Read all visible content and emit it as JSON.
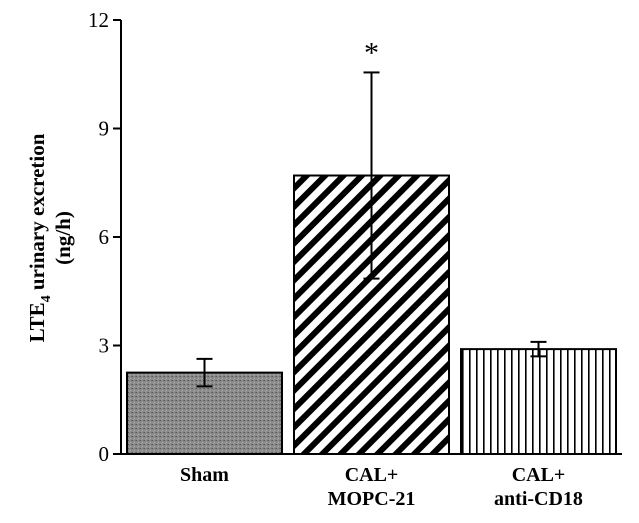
{
  "chart_data": {
    "type": "bar",
    "categories": [
      [
        "Sham"
      ],
      [
        "CAL+",
        "MOPC-21"
      ],
      [
        "CAL+",
        "anti-CD18"
      ]
    ],
    "values": [
      2.25,
      7.7,
      2.9
    ],
    "error": [
      0.38,
      2.85,
      0.2
    ],
    "patterns": [
      "stipple",
      "diagonal",
      "vertical"
    ],
    "annotations": [
      "",
      "*",
      ""
    ],
    "ylabel_line1": "LTE",
    "ylabel_sub": "4",
    "ylabel_line1_rest": " urinary excretion",
    "ylabel_line2": "(ng/h)",
    "ylim": [
      0,
      12
    ],
    "yticks": [
      0,
      3,
      6,
      9,
      12
    ],
    "grid": false,
    "colors": {
      "stroke": "#000000",
      "stipple": "#8a8a8a"
    }
  }
}
